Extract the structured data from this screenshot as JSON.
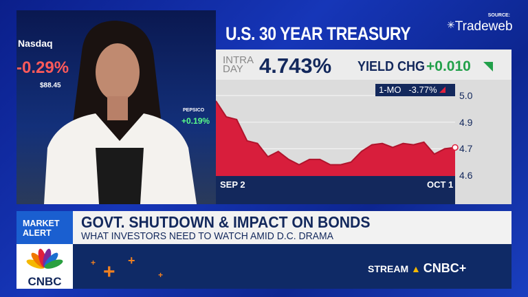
{
  "video": {
    "tickers": [
      {
        "name": "Nasdaq",
        "change": "-0.29%",
        "price": "$88.45"
      },
      {
        "name": "PEPSICO",
        "change": "+0.19%"
      }
    ]
  },
  "graphic": {
    "title": "U.S. 30 YEAR TREASURY",
    "source_label": "SOURCE:",
    "source": "Tradeweb",
    "intraday_label_1": "INTRA",
    "intraday_label_2": "DAY",
    "intraday_value": "4.743%",
    "yield_chg_label": "YIELD CHG",
    "yield_chg_value": "+0.010",
    "period_label": "1-MO",
    "period_change": "-3.77%",
    "colors": {
      "up": "#22a04a",
      "down": "#e0203c",
      "navy": "#13285c",
      "fill": "#d81e3c"
    }
  },
  "chart_data": {
    "type": "area",
    "x_labels": [
      "SEP 2",
      "OCT 1"
    ],
    "y_ticks": [
      "5.0",
      "4.9",
      "4.7",
      "4.6"
    ],
    "values": [
      4.98,
      4.92,
      4.91,
      4.76,
      4.74,
      4.67,
      4.69,
      4.66,
      4.64,
      4.66,
      4.66,
      4.64,
      4.64,
      4.65,
      4.69,
      4.73,
      4.74,
      4.71,
      4.74,
      4.73,
      4.75,
      4.68,
      4.7,
      4.71
    ],
    "grid": true
  },
  "lower_third": {
    "tag_1": "MARKET",
    "tag_2": "ALERT",
    "headline": "GOVT. SHUTDOWN & IMPACT ON BONDS",
    "subheadline": "WHAT INVESTORS NEED TO WATCH AMID D.C. DRAMA",
    "network": "CNBC",
    "stream_label": "STREAM",
    "stream_brand": "CNBC+"
  }
}
